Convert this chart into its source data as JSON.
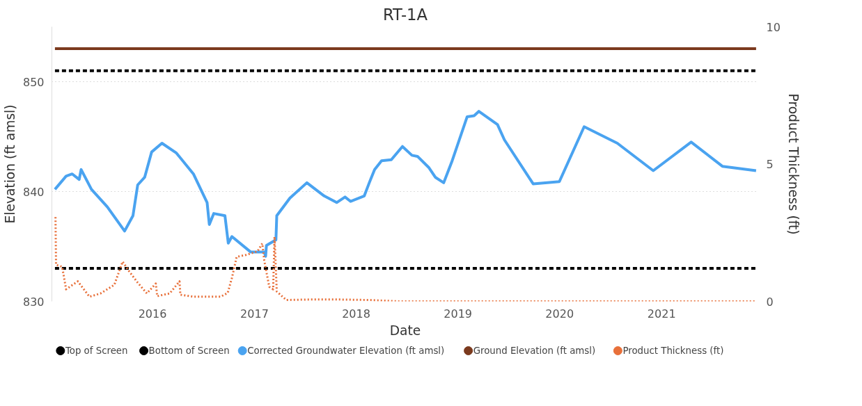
{
  "chart_data": {
    "type": "line",
    "title": "RT-1A",
    "xlabel": "Date",
    "ylabel": "Elevation (ft amsl)",
    "y2label": "Product Thickness (ft)",
    "xlim": [
      "2015-01-05",
      "2021-12-15"
    ],
    "xticks": [
      "2016",
      "2017",
      "2018",
      "2019",
      "2020",
      "2021"
    ],
    "ylim": [
      830,
      855
    ],
    "yticks": [
      830,
      840,
      850
    ],
    "y2lim": [
      0,
      10
    ],
    "y2ticks": [
      0,
      5,
      10
    ],
    "grid": "y",
    "legend": "bottom",
    "series": [
      {
        "name": "Top of Screen",
        "color": "#000000",
        "line_style": "dashed",
        "x": [
          "2015-01-16",
          "2021-12-06"
        ],
        "values": [
          851,
          851
        ]
      },
      {
        "name": "Bottom of Screen",
        "color": "#000000",
        "line_style": "dashed",
        "x": [
          "2015-01-16",
          "2021-12-06"
        ],
        "values": [
          833,
          833
        ]
      },
      {
        "name": "Corrected Groundwater Elevation (ft amsl)",
        "color": "#4aa3f0",
        "line_style": "solid",
        "x": [
          "2015-01-16",
          "2015-02-25",
          "2015-03-19",
          "2015-04-13",
          "2015-04-20",
          "2015-05-27",
          "2015-07-23",
          "2015-09-23",
          "2015-10-23",
          "2015-11-09",
          "2015-12-04",
          "2015-12-29",
          "2016-02-04",
          "2016-03-27",
          "2016-05-27",
          "2016-07-15",
          "2016-07-23",
          "2016-08-08",
          "2016-09-17",
          "2016-09-29",
          "2016-10-12",
          "2016-12-18",
          "2017-02-05",
          "2017-02-10",
          "2017-02-13",
          "2017-03-19",
          "2017-03-22",
          "2017-05-08",
          "2017-07-08",
          "2017-09-08",
          "2017-10-23",
          "2017-11-22",
          "2017-12-12",
          "2018-01-30",
          "2018-02-17",
          "2018-03-08",
          "2018-04-02",
          "2018-05-07",
          "2018-06-16",
          "2018-07-20",
          "2018-08-09",
          "2018-09-18",
          "2018-10-12",
          "2018-11-11",
          "2018-12-10",
          "2019-02-03",
          "2019-02-28",
          "2019-03-17",
          "2019-05-23",
          "2019-06-17",
          "2019-09-28",
          "2019-12-31",
          "2020-03-29",
          "2020-07-26",
          "2020-12-02",
          "2021-04-17",
          "2021-08-07",
          "2021-12-06"
        ],
        "values": [
          840.2,
          841.4,
          841.6,
          841.1,
          842.0,
          840.2,
          838.6,
          836.4,
          837.8,
          840.6,
          841.3,
          843.6,
          844.4,
          843.5,
          841.6,
          839.0,
          837.0,
          838.0,
          837.8,
          835.3,
          835.9,
          834.5,
          834.5,
          834.1,
          835.1,
          835.6,
          837.8,
          839.4,
          840.8,
          839.6,
          839.0,
          839.5,
          839.1,
          839.6,
          840.8,
          842.0,
          842.8,
          842.9,
          844.1,
          843.3,
          843.2,
          842.2,
          841.3,
          840.8,
          842.7,
          846.8,
          846.9,
          847.3,
          846.1,
          844.7,
          840.7,
          840.9,
          845.9,
          844.4,
          841.9,
          844.5,
          842.3,
          841.9
        ]
      },
      {
        "name": "Ground Elevation (ft amsl)",
        "color": "#7b3a1e",
        "line_style": "solid",
        "x": [
          "2015-01-16",
          "2021-12-06"
        ],
        "values": [
          853,
          853
        ]
      },
      {
        "name": "Product Thickness (ft)",
        "color": "#e8703a",
        "line_style": "dotted",
        "axis": "y2",
        "x": [
          "2015-01-18",
          "2015-01-20",
          "2015-02-11",
          "2015-02-25",
          "2015-04-08",
          "2015-05-20",
          "2015-06-29",
          "2015-08-17",
          "2015-09-16",
          "2015-10-06",
          "2015-11-09",
          "2015-12-12",
          "2016-01-13",
          "2016-01-18",
          "2016-03-03",
          "2016-04-07",
          "2016-04-10",
          "2016-05-27",
          "2016-09-02",
          "2016-09-27",
          "2016-10-12",
          "2016-10-29",
          "2016-12-01",
          "2017-01-12",
          "2017-01-29",
          "2017-02-05",
          "2017-02-23",
          "2017-03-09",
          "2017-03-14",
          "2017-03-22",
          "2017-04-25",
          "2017-07-28",
          "2017-10-18",
          "2018-02-19",
          "2018-06-01",
          "2021-12-06"
        ],
        "values": [
          3.07,
          1.33,
          1.26,
          0.44,
          0.73,
          0.17,
          0.29,
          0.6,
          1.45,
          1.14,
          0.68,
          0.29,
          0.65,
          0.19,
          0.29,
          0.73,
          0.24,
          0.17,
          0.17,
          0.31,
          0.85,
          1.62,
          1.69,
          1.82,
          2.11,
          1.5,
          0.53,
          0.44,
          2.35,
          0.36,
          0.05,
          0.07,
          0.07,
          0.05,
          0,
          0
        ]
      }
    ]
  }
}
